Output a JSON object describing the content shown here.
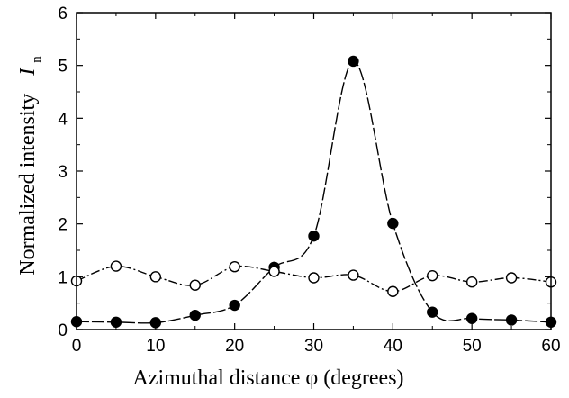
{
  "chart_data": {
    "type": "line",
    "xlabel": "Azimuthal distance φ  (degrees)",
    "ylabel_text": "Normalized intensity",
    "ylabel_symbol": "I",
    "ylabel_subscript": "n",
    "xlim": [
      0,
      60
    ],
    "ylim": [
      0,
      6
    ],
    "x_ticks": [
      0,
      10,
      20,
      30,
      40,
      50,
      60
    ],
    "y_ticks": [
      0,
      1,
      2,
      3,
      4,
      5,
      6
    ],
    "grid": false,
    "legend": "none",
    "x": [
      0,
      5,
      10,
      15,
      20,
      25,
      30,
      35,
      40,
      45,
      50,
      55,
      60
    ],
    "series": [
      {
        "marker": "filled-circle",
        "line_style": "dashed",
        "values": [
          0.15,
          0.14,
          0.13,
          0.27,
          0.46,
          1.18,
          1.77,
          5.08,
          2.01,
          0.33,
          0.21,
          0.18,
          0.14
        ]
      },
      {
        "marker": "open-circle",
        "line_style": "dash-dot",
        "values": [
          0.92,
          1.2,
          1.0,
          0.84,
          1.19,
          1.1,
          0.98,
          1.03,
          0.72,
          1.02,
          0.9,
          0.98,
          0.9
        ]
      }
    ],
    "colors": {
      "line": "#000000",
      "axes": "#000000",
      "background": "#ffffff"
    }
  }
}
